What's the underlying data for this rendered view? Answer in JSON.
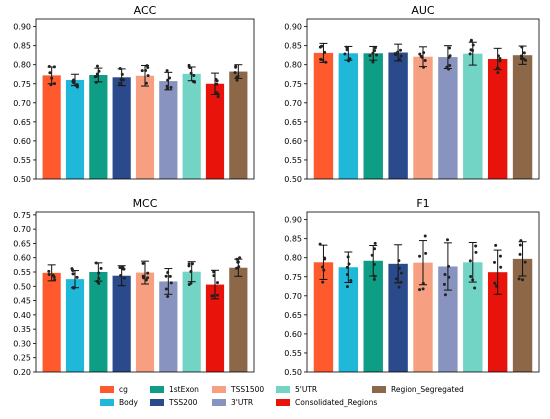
{
  "chart_data": [
    {
      "type": "bar",
      "title": "ACC",
      "categories": [
        "cg",
        "Body",
        "1stExon",
        "TSS200",
        "TSS1500",
        "3'UTR",
        "5'UTR",
        "Consolidated_Regions",
        "Region_Segregated"
      ],
      "values": [
        0.772,
        0.76,
        0.773,
        0.767,
        0.771,
        0.757,
        0.776,
        0.75,
        0.782
      ],
      "errors": [
        0.022,
        0.015,
        0.018,
        0.022,
        0.027,
        0.023,
        0.018,
        0.028,
        0.018
      ],
      "ylim": [
        0.5,
        0.92
      ],
      "yticks": [
        "0.50",
        "0.55",
        "0.60",
        "0.65",
        "0.70",
        "0.75",
        "0.80",
        "0.85",
        "0.90"
      ]
    },
    {
      "type": "bar",
      "title": "AUC",
      "categories": [
        "cg",
        "Body",
        "1stExon",
        "TSS200",
        "TSS1500",
        "3'UTR",
        "5'UTR",
        "Consolidated_Regions",
        "Region_Segregated"
      ],
      "values": [
        0.831,
        0.83,
        0.83,
        0.832,
        0.821,
        0.82,
        0.829,
        0.815,
        0.825
      ],
      "errors": [
        0.025,
        0.018,
        0.018,
        0.022,
        0.026,
        0.03,
        0.03,
        0.028,
        0.024
      ],
      "ylim": [
        0.5,
        0.92
      ],
      "yticks": [
        "0.50",
        "0.55",
        "0.60",
        "0.65",
        "0.70",
        "0.75",
        "0.80",
        "0.85",
        "0.90"
      ]
    },
    {
      "type": "bar",
      "title": "MCC",
      "categories": [
        "cg",
        "Body",
        "1stExon",
        "TSS200",
        "TSS1500",
        "3'UTR",
        "5'UTR",
        "Consolidated_Regions",
        "Region_Segregated"
      ],
      "values": [
        0.547,
        0.525,
        0.55,
        0.537,
        0.548,
        0.517,
        0.551,
        0.506,
        0.565
      ],
      "errors": [
        0.028,
        0.03,
        0.032,
        0.035,
        0.04,
        0.045,
        0.035,
        0.05,
        0.03
      ],
      "ylim": [
        0.2,
        0.76
      ],
      "yticks": [
        "0.20",
        "0.25",
        "0.30",
        "0.35",
        "0.40",
        "0.45",
        "0.50",
        "0.55",
        "0.60",
        "0.65",
        "0.70",
        "0.75"
      ]
    },
    {
      "type": "bar",
      "title": "F1",
      "categories": [
        "cg",
        "Body",
        "1stExon",
        "TSS200",
        "TSS1500",
        "3'UTR",
        "5'UTR",
        "Consolidated_Regions",
        "Region_Segregated"
      ],
      "values": [
        0.788,
        0.775,
        0.792,
        0.784,
        0.787,
        0.777,
        0.788,
        0.762,
        0.797
      ],
      "errors": [
        0.045,
        0.04,
        0.04,
        0.05,
        0.058,
        0.062,
        0.052,
        0.058,
        0.045
      ],
      "ylim": [
        0.5,
        0.92
      ],
      "yticks": [
        "0.50",
        "0.55",
        "0.60",
        "0.65",
        "0.70",
        "0.75",
        "0.80",
        "0.85",
        "0.90"
      ]
    }
  ],
  "legend": {
    "placement": "bottom",
    "entries": [
      {
        "label": "cg",
        "color": "#ff5a2e"
      },
      {
        "label": "Body",
        "color": "#1fb8d8"
      },
      {
        "label": "1stExon",
        "color": "#0e9e85"
      },
      {
        "label": "TSS200",
        "color": "#2b4a8c"
      },
      {
        "label": "TSS1500",
        "color": "#f7a081"
      },
      {
        "label": "3'UTR",
        "color": "#8894bf"
      },
      {
        "label": "5'UTR",
        "color": "#72d4c4"
      },
      {
        "label": "Consolidated_Regions",
        "color": "#e8140c"
      },
      {
        "label": "Region_Segregated",
        "color": "#8c6848"
      }
    ]
  }
}
